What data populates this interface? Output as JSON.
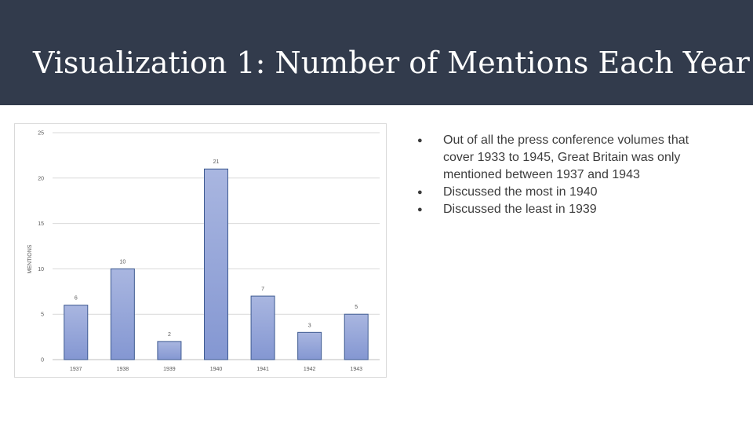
{
  "slide": {
    "title": "Visualization 1: Number of Mentions Each Year",
    "colors": {
      "header_bg": "#323b4c",
      "bar_fill": "#95a5d6",
      "bar_stroke": "#3e5a91"
    }
  },
  "bullets": [
    "Out of all the press conference volumes that cover 1933 to 1945, Great Britain was only mentioned between 1937 and 1943",
    "Discussed the most in 1940",
    "Discussed the least in 1939"
  ],
  "chart_data": {
    "type": "bar",
    "categories": [
      "1937",
      "1938",
      "1939",
      "1940",
      "1941",
      "1942",
      "1943"
    ],
    "values": [
      6,
      10,
      2,
      21,
      7,
      3,
      5
    ],
    "data_labels": [
      "6",
      "10",
      "2",
      "21",
      "7",
      "3",
      "5"
    ],
    "title": "",
    "xlabel": "",
    "ylabel": "MENTIONS",
    "ylim": [
      0,
      25
    ],
    "yticks": [
      "0",
      "5",
      "10",
      "15",
      "20",
      "25"
    ],
    "grid": true,
    "legend": "none"
  }
}
